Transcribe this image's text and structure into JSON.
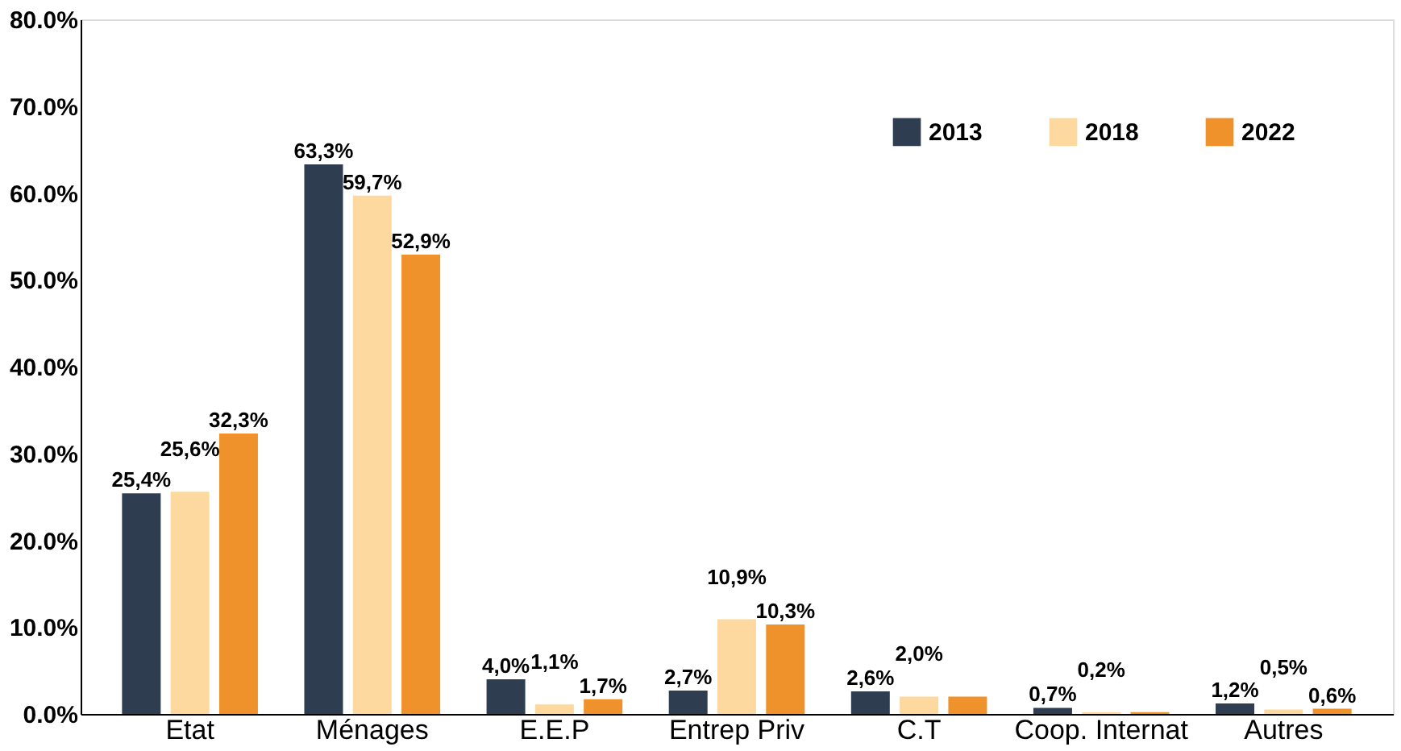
{
  "chart_data": {
    "type": "bar",
    "categories": [
      "Etat",
      "Ménages",
      "E.E.P",
      "Entrep Priv",
      "C.T",
      "Coop. Internat",
      "Autres"
    ],
    "series": [
      {
        "name": "2013",
        "color": "#2e3e50",
        "values": [
          25.4,
          63.3,
          4.0,
          2.7,
          2.6,
          0.7,
          1.2
        ],
        "value_labels": [
          "25,4%",
          "63,3%",
          "4,0%",
          "2,7%",
          "2,6%",
          "0,7%",
          "1,2%"
        ]
      },
      {
        "name": "2018",
        "color": "#fdd9a0",
        "values": [
          25.6,
          59.7,
          1.1,
          10.9,
          2.0,
          0.2,
          0.5
        ],
        "value_labels": [
          "25,6%",
          "59,7%",
          "1,1%",
          "10,9%",
          "2,0%",
          "0,2%",
          "0,5%"
        ]
      },
      {
        "name": "2022",
        "color": "#f0922b",
        "values": [
          32.3,
          52.9,
          1.7,
          10.3,
          2.0,
          0.2,
          0.6
        ],
        "value_labels": [
          "32,3%",
          "52,9%",
          "1,7%",
          "10,3%",
          null,
          null,
          "0,6%"
        ]
      }
    ],
    "ylim": [
      0,
      80
    ],
    "yticks": [
      {
        "value": 0,
        "label": "0.0%"
      },
      {
        "value": 10,
        "label": "10.0%"
      },
      {
        "value": 20,
        "label": "20.0%"
      },
      {
        "value": 30,
        "label": "30.0%"
      },
      {
        "value": 40,
        "label": "40.0%"
      },
      {
        "value": 50,
        "label": "50.0%"
      },
      {
        "value": 60,
        "label": "60.0%"
      },
      {
        "value": 70,
        "label": "70.0%"
      },
      {
        "value": 80,
        "label": "80.0%"
      }
    ],
    "grid": false,
    "legend": "top right"
  }
}
